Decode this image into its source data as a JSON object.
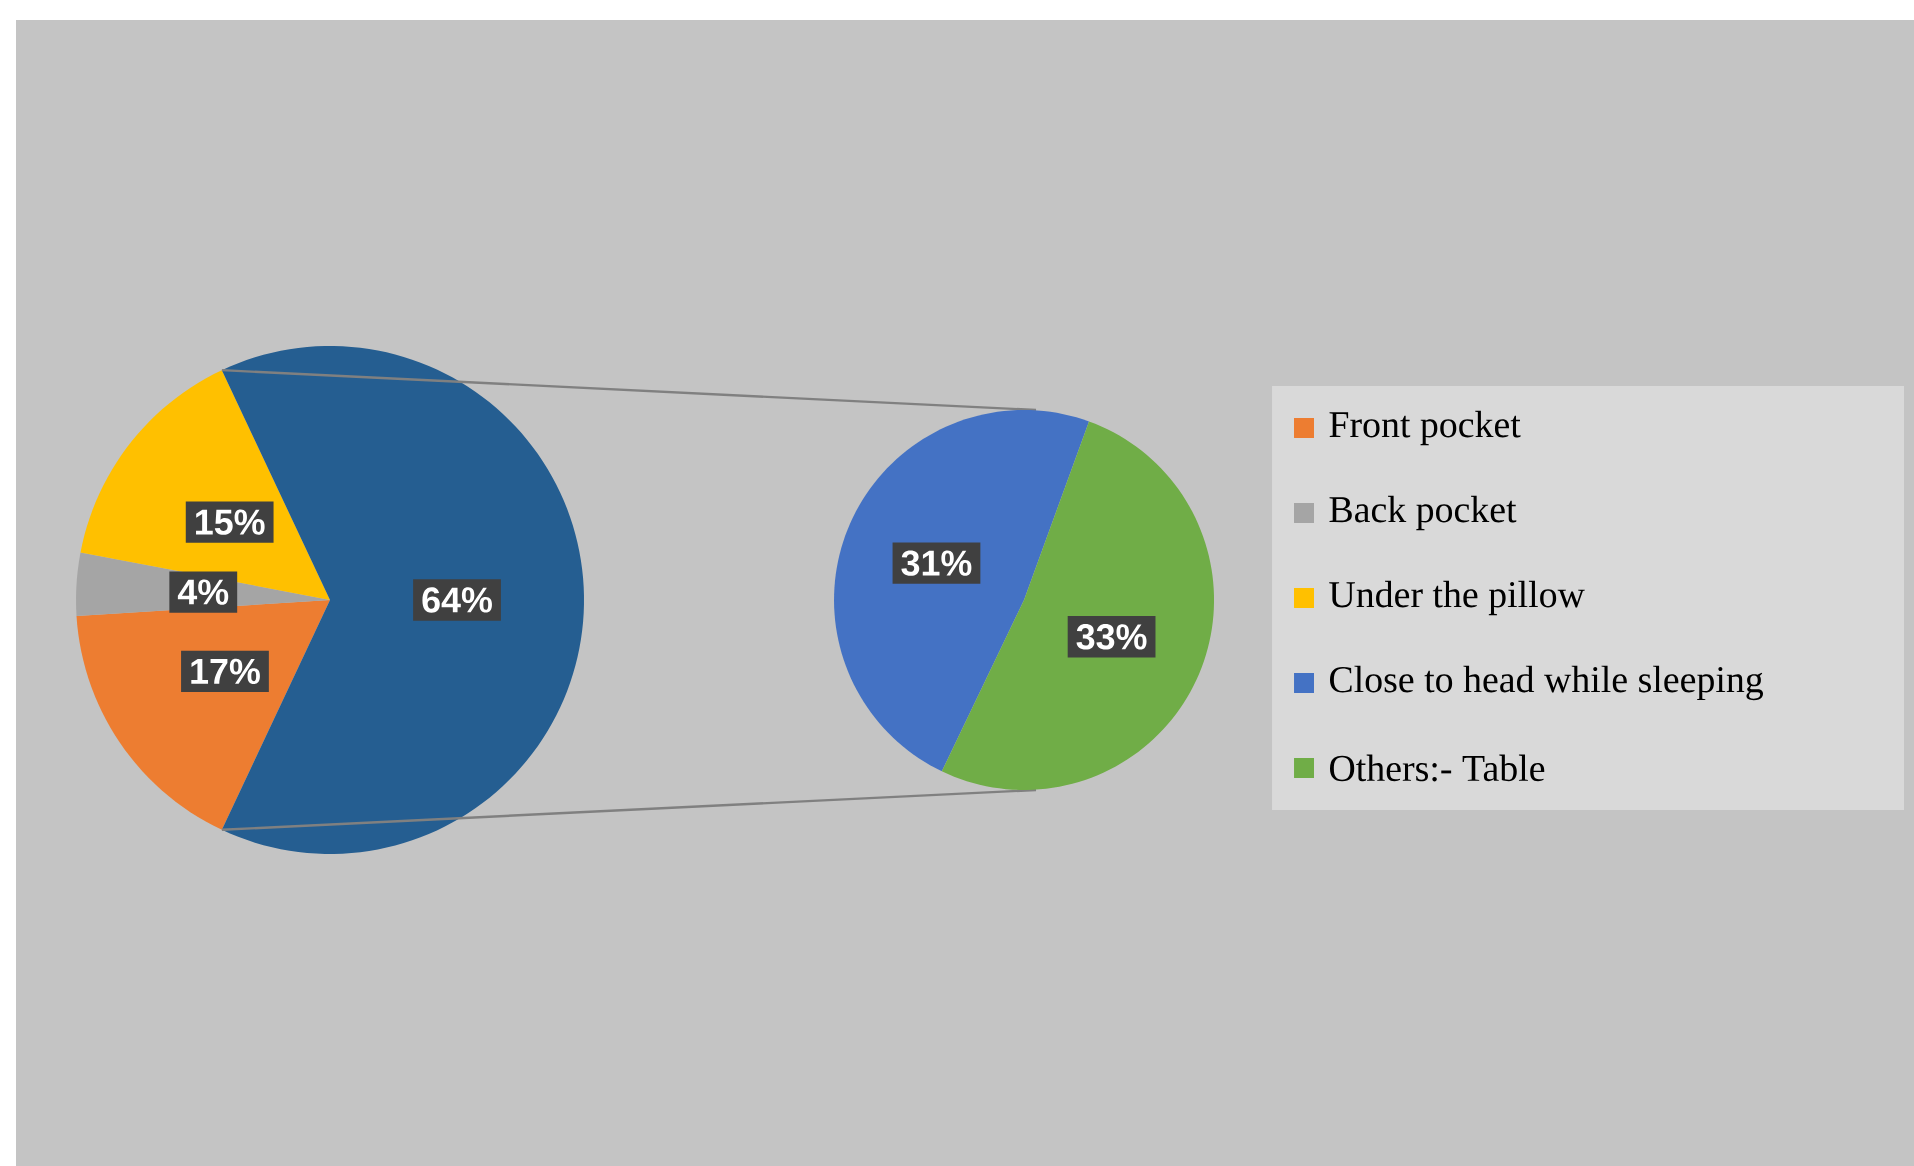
{
  "chart_data": [
    {
      "type": "pie",
      "categories": [
        "Front pocket",
        "Back pocket",
        "Under the pillow",
        null
      ],
      "values": [
        17,
        4,
        15,
        64
      ],
      "colors": [
        "#ed7d31",
        "#a5a5a5",
        "#ffc000",
        "#255e91"
      ],
      "value_labels": [
        "17%",
        "4%",
        "15%",
        "64%"
      ],
      "legend": "right"
    },
    {
      "type": "pie",
      "categories": [
        "Close to head while sleeping",
        "Others:- Table"
      ],
      "values": [
        31,
        33
      ],
      "colors": [
        "#4472c4",
        "#70ad47"
      ],
      "value_labels": [
        "31%",
        "33%"
      ],
      "legend": "right"
    }
  ]
}
